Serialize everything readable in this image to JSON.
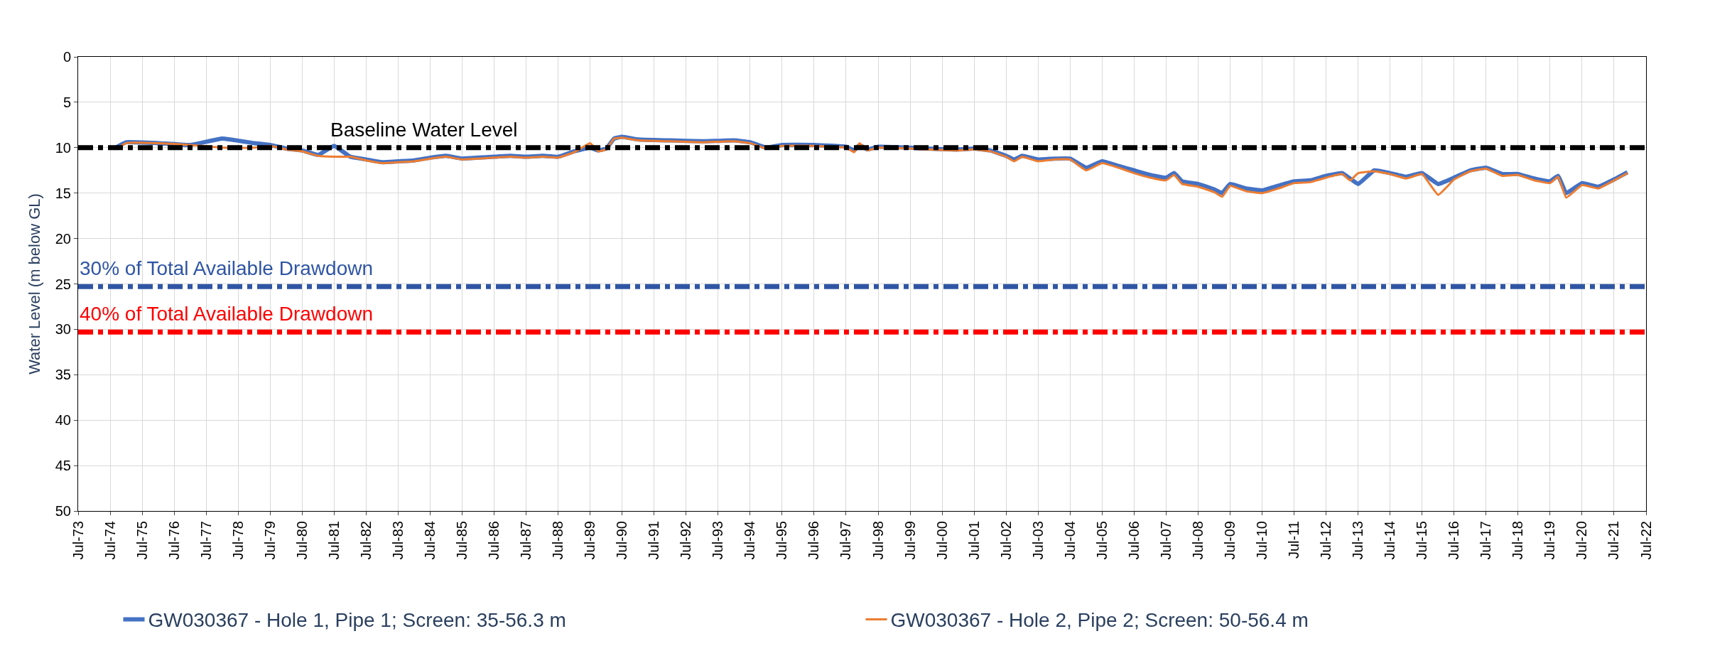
{
  "chart_data": {
    "type": "line",
    "ylabel": "Water Level (m below GL)",
    "ylim": [
      50,
      0
    ],
    "yticks": [
      0,
      5,
      10,
      15,
      20,
      25,
      30,
      35,
      40,
      45,
      50
    ],
    "xlim": [
      "1973-07",
      "2022-07"
    ],
    "xticks": [
      {
        "value": "1973-07",
        "label": "Jul-73"
      },
      {
        "value": "1974-07",
        "label": "Jul-74"
      },
      {
        "value": "1975-07",
        "label": "Jul-75"
      },
      {
        "value": "1976-07",
        "label": "Jul-76"
      },
      {
        "value": "1977-07",
        "label": "Jul-77"
      },
      {
        "value": "1978-07",
        "label": "Jul-78"
      },
      {
        "value": "1979-07",
        "label": "Jul-79"
      },
      {
        "value": "1980-07",
        "label": "Jul-80"
      },
      {
        "value": "1981-07",
        "label": "Jul-81"
      },
      {
        "value": "1982-07",
        "label": "Jul-82"
      },
      {
        "value": "1983-07",
        "label": "Jul-83"
      },
      {
        "value": "1984-07",
        "label": "Jul-84"
      },
      {
        "value": "1985-07",
        "label": "Jul-85"
      },
      {
        "value": "1986-07",
        "label": "Jul-86"
      },
      {
        "value": "1987-07",
        "label": "Jul-87"
      },
      {
        "value": "1988-07",
        "label": "Jul-88"
      },
      {
        "value": "1989-07",
        "label": "Jul-89"
      },
      {
        "value": "1990-07",
        "label": "Jul-90"
      },
      {
        "value": "1991-07",
        "label": "Jul-91"
      },
      {
        "value": "1992-07",
        "label": "Jul-92"
      },
      {
        "value": "1993-07",
        "label": "Jul-93"
      },
      {
        "value": "1994-07",
        "label": "Jul-94"
      },
      {
        "value": "1995-07",
        "label": "Jul-95"
      },
      {
        "value": "1996-07",
        "label": "Jul-96"
      },
      {
        "value": "1997-07",
        "label": "Jul-97"
      },
      {
        "value": "1998-07",
        "label": "Jul-98"
      },
      {
        "value": "1999-07",
        "label": "Jul-99"
      },
      {
        "value": "2000-07",
        "label": "Jul-00"
      },
      {
        "value": "2001-07",
        "label": "Jul-01"
      },
      {
        "value": "2002-07",
        "label": "Jul-02"
      },
      {
        "value": "2003-07",
        "label": "Jul-03"
      },
      {
        "value": "2004-07",
        "label": "Jul-04"
      },
      {
        "value": "2005-07",
        "label": "Jul-05"
      },
      {
        "value": "2006-07",
        "label": "Jul-06"
      },
      {
        "value": "2007-07",
        "label": "Jul-07"
      },
      {
        "value": "2008-07",
        "label": "Jul-08"
      },
      {
        "value": "2009-07",
        "label": "Jul-09"
      },
      {
        "value": "2010-07",
        "label": "Jul-10"
      },
      {
        "value": "2011-07",
        "label": "Jul-11"
      },
      {
        "value": "2012-07",
        "label": "Jul-12"
      },
      {
        "value": "2013-07",
        "label": "Jul-13"
      },
      {
        "value": "2014-07",
        "label": "Jul-14"
      },
      {
        "value": "2015-07",
        "label": "Jul-15"
      },
      {
        "value": "2016-07",
        "label": "Jul-16"
      },
      {
        "value": "2017-07",
        "label": "Jul-17"
      },
      {
        "value": "2018-07",
        "label": "Jul-18"
      },
      {
        "value": "2019-07",
        "label": "Jul-19"
      },
      {
        "value": "2020-07",
        "label": "Jul-20"
      },
      {
        "value": "2021-07",
        "label": "Jul-21"
      },
      {
        "value": "2022-07",
        "label": "Jul-22"
      }
    ],
    "x": [
      "1974-09",
      "1975-01",
      "1976-01",
      "1977-01",
      "1978-01",
      "1979-01",
      "1979-07",
      "1980-01",
      "1980-07",
      "1981-01",
      "1981-07",
      "1982-01",
      "1982-07",
      "1983-01",
      "1983-07",
      "1984-01",
      "1984-07",
      "1985-01",
      "1985-07",
      "1986-01",
      "1986-07",
      "1987-01",
      "1987-07",
      "1988-01",
      "1988-07",
      "1989-01",
      "1989-07",
      "1989-10",
      "1990-01",
      "1990-04",
      "1990-07",
      "1991-01",
      "1992-01",
      "1993-01",
      "1994-01",
      "1994-07",
      "1995-01",
      "1995-07",
      "1996-07",
      "1997-07",
      "1997-10",
      "1997-12",
      "1998-03",
      "1998-07",
      "1999-07",
      "2000-01",
      "2001-01",
      "2001-07",
      "2002-01",
      "2002-07",
      "2002-10",
      "2003-01",
      "2003-07",
      "2004-01",
      "2004-07",
      "2005-01",
      "2005-07",
      "2006-01",
      "2006-07",
      "2007-01",
      "2007-07",
      "2007-10",
      "2008-01",
      "2008-07",
      "2009-01",
      "2009-04",
      "2009-07",
      "2010-01",
      "2010-07",
      "2011-01",
      "2011-07",
      "2012-01",
      "2012-07",
      "2013-01",
      "2013-04",
      "2013-07",
      "2014-01",
      "2014-07",
      "2015-01",
      "2015-07",
      "2016-01",
      "2016-07",
      "2017-01",
      "2017-07",
      "2018-01",
      "2018-07",
      "2019-01",
      "2019-07",
      "2019-10",
      "2020-01",
      "2020-07",
      "2021-01",
      "2021-07",
      "2021-12"
    ],
    "series": [
      {
        "name": "GW030367 - Hole 1, Pipe 1; Screen: 35-56.3 m",
        "color": "#4472c4",
        "values": [
          10.0,
          9.4,
          9.5,
          9.7,
          9.0,
          9.5,
          9.7,
          10.1,
          10.3,
          10.8,
          9.8,
          11.0,
          11.3,
          11.6,
          11.5,
          11.4,
          11.1,
          10.9,
          11.2,
          11.1,
          11.0,
          10.9,
          11.0,
          10.9,
          11.0,
          10.4,
          10.0,
          10.3,
          10.1,
          9.0,
          8.8,
          9.1,
          9.2,
          9.3,
          9.2,
          9.4,
          10.0,
          9.7,
          9.7,
          9.9,
          10.3,
          9.7,
          10.2,
          9.9,
          10.0,
          10.1,
          10.2,
          10.1,
          10.3,
          10.9,
          11.3,
          10.9,
          11.3,
          11.2,
          11.2,
          12.2,
          11.5,
          12.0,
          12.5,
          13.0,
          13.3,
          12.8,
          13.7,
          14.0,
          14.6,
          15.0,
          14.0,
          14.5,
          14.7,
          14.2,
          13.7,
          13.6,
          13.1,
          12.8,
          13.4,
          14.0,
          12.5,
          12.8,
          13.2,
          12.8,
          14.0,
          13.3,
          12.5,
          12.2,
          12.9,
          12.9,
          13.4,
          13.7,
          13.1,
          15.0,
          13.9,
          14.3,
          13.5,
          12.7
        ]
      },
      {
        "name": "GW030367 - Hole 2, Pipe 2; Screen: 50-56.4 m",
        "color": "#ed7d31",
        "values": [
          10.2,
          9.5,
          9.5,
          9.7,
          10.0,
          10.0,
          9.8,
          10.2,
          10.4,
          10.9,
          11.0,
          11.0,
          11.4,
          11.7,
          11.6,
          11.5,
          11.2,
          11.0,
          11.3,
          11.2,
          11.1,
          11.0,
          11.1,
          11.0,
          11.1,
          10.5,
          9.5,
          10.4,
          10.2,
          9.0,
          8.9,
          9.2,
          9.3,
          9.4,
          9.3,
          9.5,
          10.1,
          9.8,
          9.8,
          10.0,
          10.5,
          9.5,
          10.3,
          10.0,
          10.1,
          10.2,
          10.3,
          10.2,
          10.4,
          11.0,
          11.5,
          11.0,
          11.5,
          11.3,
          11.3,
          12.5,
          11.7,
          12.2,
          12.8,
          13.3,
          13.6,
          13.0,
          14.0,
          14.3,
          14.9,
          15.4,
          14.2,
          14.8,
          15.0,
          14.5,
          13.9,
          13.8,
          13.3,
          12.9,
          13.6,
          12.8,
          12.6,
          12.9,
          13.4,
          12.9,
          15.2,
          13.5,
          12.6,
          12.3,
          13.1,
          13.0,
          13.6,
          13.9,
          13.2,
          15.5,
          14.1,
          14.5,
          13.6,
          12.8
        ]
      }
    ],
    "ref_lines": [
      {
        "axis": "y",
        "value": 10,
        "label": "Baseline Water Level",
        "color": "#000000",
        "line_style": "dashdot"
      },
      {
        "axis": "y",
        "value": 25.3,
        "label": "30% of Total Available Drawdown",
        "color": "#2f55a4",
        "line_style": "dashdot"
      },
      {
        "axis": "y",
        "value": 30.3,
        "label": "40% of Total Available Drawdown",
        "color": "#ff0000",
        "line_style": "dashdot"
      }
    ],
    "grid": true,
    "legend": "bottom",
    "marker": "none",
    "line_style": "solid"
  }
}
